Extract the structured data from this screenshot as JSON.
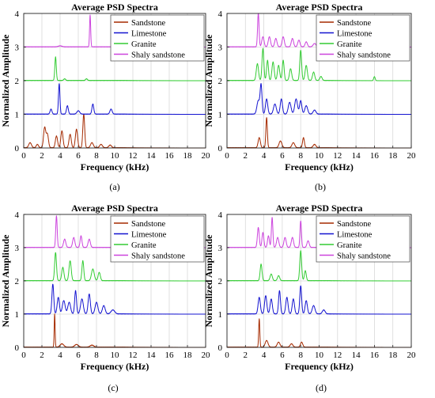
{
  "figure": {
    "panels": [
      {
        "caption": "(a)"
      },
      {
        "caption": "(b)"
      },
      {
        "caption": "(c)"
      },
      {
        "caption": "(d)"
      }
    ]
  },
  "chart_data": [
    {
      "type": "line",
      "panel": "a",
      "title": "Average PSD Spectra",
      "xlabel": "Frequency (kHz)",
      "ylabel": "Normalized Amplitude",
      "xlim": [
        0,
        20
      ],
      "ylim": [
        0,
        4
      ],
      "xticks": [
        0,
        2,
        4,
        6,
        8,
        10,
        12,
        14,
        16,
        18,
        20
      ],
      "yticks": [
        0,
        1,
        2,
        3,
        4
      ],
      "grid": true,
      "legend_position": "top-right",
      "series": [
        {
          "name": "Sandstone",
          "color": "#a52a00",
          "offset": 0,
          "peaks": [
            [
              0.7,
              0.15,
              0.15
            ],
            [
              1.5,
              0.12,
              0.1
            ],
            [
              2.3,
              0.12,
              0.6
            ],
            [
              2.6,
              0.12,
              0.4
            ],
            [
              3.6,
              0.12,
              0.35
            ],
            [
              4.2,
              0.12,
              0.5
            ],
            [
              5.1,
              0.12,
              0.4
            ],
            [
              5.8,
              0.12,
              0.55
            ],
            [
              6.6,
              0.1,
              1.0
            ],
            [
              7.5,
              0.15,
              0.15
            ],
            [
              8.5,
              0.15,
              0.1
            ],
            [
              9.5,
              0.15,
              0.08
            ]
          ]
        },
        {
          "name": "Limestone",
          "color": "#1414d0",
          "offset": 1,
          "peaks": [
            [
              3.0,
              0.1,
              0.15
            ],
            [
              3.9,
              0.08,
              0.9
            ],
            [
              4.8,
              0.1,
              0.25
            ],
            [
              6.0,
              0.15,
              0.1
            ],
            [
              7.6,
              0.1,
              0.3
            ],
            [
              9.6,
              0.12,
              0.15
            ]
          ]
        },
        {
          "name": "Granite",
          "color": "#33cc33",
          "offset": 2,
          "peaks": [
            [
              3.5,
              0.08,
              0.7
            ],
            [
              4.5,
              0.1,
              0.05
            ],
            [
              6.9,
              0.1,
              0.05
            ]
          ]
        },
        {
          "name": "Shaly sandstone",
          "color": "#cc44dd",
          "offset": 3,
          "peaks": [
            [
              7.3,
              0.06,
              0.95
            ],
            [
              4.0,
              0.2,
              0.03
            ]
          ]
        }
      ]
    },
    {
      "type": "line",
      "panel": "b",
      "title": "Average PSD Spectra",
      "xlabel": "Frequency (kHz)",
      "ylabel": "Normalized Amplitude",
      "xlim": [
        0,
        20
      ],
      "ylim": [
        0,
        4
      ],
      "xticks": [
        0,
        2,
        4,
        6,
        8,
        10,
        12,
        14,
        16,
        18,
        20
      ],
      "yticks": [
        0,
        1,
        2,
        3,
        4
      ],
      "grid": true,
      "legend_position": "top-right",
      "series": [
        {
          "name": "Sandstone",
          "color": "#a52a00",
          "offset": 0,
          "peaks": [
            [
              3.5,
              0.12,
              0.3
            ],
            [
              4.3,
              0.08,
              0.9
            ],
            [
              5.8,
              0.15,
              0.2
            ],
            [
              7.2,
              0.15,
              0.15
            ],
            [
              8.3,
              0.1,
              0.3
            ],
            [
              9.5,
              0.15,
              0.1
            ]
          ]
        },
        {
          "name": "Limestone",
          "color": "#1414d0",
          "offset": 1,
          "peaks": [
            [
              3.4,
              0.15,
              0.4
            ],
            [
              3.7,
              0.1,
              0.85
            ],
            [
              4.3,
              0.12,
              0.45
            ],
            [
              5.2,
              0.15,
              0.3
            ],
            [
              5.9,
              0.12,
              0.45
            ],
            [
              6.8,
              0.15,
              0.35
            ],
            [
              7.5,
              0.15,
              0.45
            ],
            [
              8.0,
              0.12,
              0.4
            ],
            [
              8.6,
              0.15,
              0.25
            ],
            [
              9.5,
              0.15,
              0.12
            ]
          ]
        },
        {
          "name": "Granite",
          "color": "#33cc33",
          "offset": 2,
          "peaks": [
            [
              3.3,
              0.12,
              0.5
            ],
            [
              3.9,
              0.1,
              0.95
            ],
            [
              4.4,
              0.1,
              0.6
            ],
            [
              5.0,
              0.12,
              0.55
            ],
            [
              5.6,
              0.12,
              0.45
            ],
            [
              6.1,
              0.1,
              0.6
            ],
            [
              6.9,
              0.12,
              0.35
            ],
            [
              8.0,
              0.1,
              0.9
            ],
            [
              8.6,
              0.12,
              0.45
            ],
            [
              9.4,
              0.12,
              0.25
            ],
            [
              10.2,
              0.12,
              0.12
            ],
            [
              16.0,
              0.08,
              0.12
            ]
          ]
        },
        {
          "name": "Shaly sandstone",
          "color": "#cc44dd",
          "offset": 3,
          "peaks": [
            [
              3.4,
              0.08,
              1.0
            ],
            [
              3.9,
              0.12,
              0.3
            ],
            [
              4.6,
              0.12,
              0.3
            ],
            [
              5.3,
              0.12,
              0.25
            ],
            [
              6.1,
              0.12,
              0.3
            ],
            [
              7.1,
              0.12,
              0.25
            ],
            [
              7.8,
              0.12,
              0.2
            ],
            [
              8.6,
              0.12,
              0.15
            ],
            [
              9.5,
              0.15,
              0.1
            ]
          ]
        }
      ]
    },
    {
      "type": "line",
      "panel": "c",
      "title": "Average PSD Spectra",
      "xlabel": "Frequency (kHz)",
      "ylabel": "Normalized Amplitude",
      "xlim": [
        0,
        20
      ],
      "ylim": [
        0,
        4
      ],
      "xticks": [
        0,
        2,
        4,
        6,
        8,
        10,
        12,
        14,
        16,
        18,
        20
      ],
      "yticks": [
        0,
        1,
        2,
        3,
        4
      ],
      "grid": true,
      "legend_position": "top-right",
      "series": [
        {
          "name": "Sandstone",
          "color": "#a52a00",
          "offset": 0,
          "peaks": [
            [
              3.4,
              0.05,
              1.0
            ],
            [
              4.2,
              0.2,
              0.1
            ],
            [
              5.8,
              0.2,
              0.08
            ],
            [
              7.5,
              0.2,
              0.06
            ]
          ]
        },
        {
          "name": "Limestone",
          "color": "#1414d0",
          "offset": 1,
          "peaks": [
            [
              3.2,
              0.1,
              0.9
            ],
            [
              3.8,
              0.12,
              0.5
            ],
            [
              4.4,
              0.15,
              0.4
            ],
            [
              5.0,
              0.15,
              0.35
            ],
            [
              5.7,
              0.1,
              0.7
            ],
            [
              6.4,
              0.15,
              0.45
            ],
            [
              7.2,
              0.12,
              0.6
            ],
            [
              8.0,
              0.15,
              0.35
            ],
            [
              8.8,
              0.15,
              0.25
            ],
            [
              9.8,
              0.2,
              0.12
            ]
          ]
        },
        {
          "name": "Granite",
          "color": "#33cc33",
          "offset": 2,
          "peaks": [
            [
              3.5,
              0.1,
              0.85
            ],
            [
              4.3,
              0.12,
              0.4
            ],
            [
              5.1,
              0.12,
              0.6
            ],
            [
              6.5,
              0.1,
              0.6
            ],
            [
              7.6,
              0.15,
              0.35
            ],
            [
              8.3,
              0.12,
              0.25
            ]
          ]
        },
        {
          "name": "Shaly sandstone",
          "color": "#cc44dd",
          "offset": 3,
          "peaks": [
            [
              3.6,
              0.08,
              0.95
            ],
            [
              4.5,
              0.12,
              0.25
            ],
            [
              5.5,
              0.12,
              0.3
            ],
            [
              6.3,
              0.1,
              0.35
            ],
            [
              7.2,
              0.12,
              0.25
            ]
          ]
        }
      ]
    },
    {
      "type": "line",
      "panel": "d",
      "title": "Average PSD Spectra",
      "xlabel": "Frequency (kHz)",
      "ylabel": "Normalized Amplitude",
      "xlim": [
        0,
        20
      ],
      "ylim": [
        0,
        4
      ],
      "xticks": [
        0,
        2,
        4,
        6,
        8,
        10,
        12,
        14,
        16,
        18,
        20
      ],
      "yticks": [
        0,
        1,
        2,
        3,
        4
      ],
      "grid": true,
      "legend_position": "top-right",
      "series": [
        {
          "name": "Sandstone",
          "color": "#a52a00",
          "offset": 0,
          "peaks": [
            [
              3.5,
              0.06,
              0.85
            ],
            [
              4.3,
              0.15,
              0.2
            ],
            [
              5.6,
              0.15,
              0.15
            ],
            [
              7.0,
              0.15,
              0.1
            ],
            [
              8.1,
              0.12,
              0.15
            ]
          ]
        },
        {
          "name": "Limestone",
          "color": "#1414d0",
          "offset": 1,
          "peaks": [
            [
              3.5,
              0.12,
              0.5
            ],
            [
              4.2,
              0.12,
              0.55
            ],
            [
              4.8,
              0.12,
              0.45
            ],
            [
              5.7,
              0.1,
              0.7
            ],
            [
              6.5,
              0.12,
              0.5
            ],
            [
              7.2,
              0.12,
              0.45
            ],
            [
              8.0,
              0.1,
              0.85
            ],
            [
              8.6,
              0.12,
              0.4
            ],
            [
              9.4,
              0.15,
              0.25
            ],
            [
              10.5,
              0.15,
              0.12
            ]
          ]
        },
        {
          "name": "Granite",
          "color": "#33cc33",
          "offset": 2,
          "peaks": [
            [
              3.7,
              0.1,
              0.5
            ],
            [
              4.8,
              0.12,
              0.2
            ],
            [
              5.6,
              0.12,
              0.15
            ],
            [
              8.0,
              0.1,
              0.9
            ],
            [
              8.5,
              0.1,
              0.3
            ]
          ]
        },
        {
          "name": "Shaly sandstone",
          "color": "#cc44dd",
          "offset": 3,
          "peaks": [
            [
              3.4,
              0.1,
              0.6
            ],
            [
              3.9,
              0.1,
              0.45
            ],
            [
              4.5,
              0.1,
              0.35
            ],
            [
              4.9,
              0.08,
              0.9
            ],
            [
              5.5,
              0.12,
              0.3
            ],
            [
              6.3,
              0.12,
              0.3
            ],
            [
              7.1,
              0.12,
              0.3
            ],
            [
              8.0,
              0.08,
              0.8
            ],
            [
              8.8,
              0.12,
              0.2
            ]
          ]
        }
      ]
    }
  ]
}
